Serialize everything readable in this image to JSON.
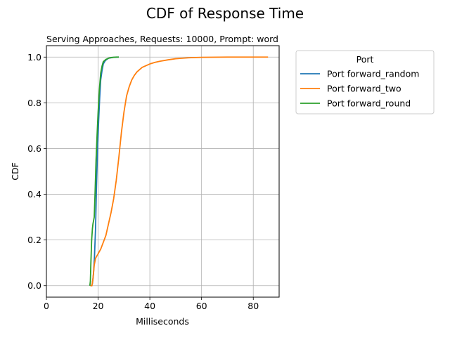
{
  "chart_data": {
    "type": "line",
    "title": "CDF of Response Time",
    "subtitle": "Serving Approaches, Requests: 10000, Prompt: word",
    "xlabel": "Milliseconds",
    "ylabel": "CDF",
    "xlim": [
      0,
      90
    ],
    "ylim": [
      -0.05,
      1.05
    ],
    "xticks": [
      0,
      20,
      40,
      60,
      80
    ],
    "yticks": [
      0.0,
      0.2,
      0.4,
      0.6,
      0.8,
      1.0
    ],
    "xtick_labels": [
      "0",
      "20",
      "40",
      "60",
      "80"
    ],
    "ytick_labels": [
      "0.0",
      "0.2",
      "0.4",
      "0.6",
      "0.8",
      "1.0"
    ],
    "grid": true,
    "legend": {
      "title": "Port",
      "placement": "outside-right"
    },
    "series": [
      {
        "name": "Port forward_random",
        "color": "#1f77b4",
        "x": [
          17.5,
          17.8,
          18.2,
          18.6,
          19.0,
          19.4,
          19.8,
          20.2,
          20.6,
          21.0,
          21.5,
          22.0,
          22.8,
          24.0,
          26.0,
          28.0
        ],
        "y": [
          0.0,
          0.01,
          0.05,
          0.13,
          0.25,
          0.45,
          0.6,
          0.72,
          0.82,
          0.9,
          0.94,
          0.97,
          0.985,
          0.995,
          0.999,
          1.0
        ]
      },
      {
        "name": "Port forward_two",
        "color": "#ff7f0e",
        "x": [
          17.0,
          17.6,
          18.0,
          18.5,
          19.0,
          20.0,
          21.0,
          22.0,
          23.0,
          24.0,
          25.0,
          26.0,
          27.0,
          28.0,
          29.0,
          30.0,
          31.0,
          32.0,
          33.0,
          34.0,
          35.0,
          36.0,
          37.0,
          38.0,
          39.0,
          40.0,
          42.0,
          44.0,
          47.0,
          50.0,
          55.0,
          60.0,
          70.0,
          80.0,
          85.7
        ],
        "y": [
          0.0,
          0.0,
          0.03,
          0.09,
          0.12,
          0.14,
          0.16,
          0.19,
          0.22,
          0.27,
          0.32,
          0.38,
          0.46,
          0.56,
          0.67,
          0.76,
          0.83,
          0.87,
          0.9,
          0.92,
          0.935,
          0.945,
          0.955,
          0.96,
          0.965,
          0.97,
          0.977,
          0.982,
          0.988,
          0.993,
          0.997,
          0.999,
          1.0,
          1.0,
          1.0
        ]
      },
      {
        "name": "Port forward_round",
        "color": "#2ca02c",
        "x": [
          16.8,
          17.0,
          17.2,
          17.5,
          17.8,
          18.0,
          18.5,
          18.8,
          19.2,
          19.6,
          20.0,
          20.5,
          21.0,
          21.5,
          22.0,
          23.0,
          24.0,
          25.0,
          27.0,
          28.0
        ],
        "y": [
          0.0,
          0.02,
          0.1,
          0.2,
          0.25,
          0.27,
          0.3,
          0.4,
          0.55,
          0.66,
          0.76,
          0.86,
          0.93,
          0.96,
          0.98,
          0.99,
          0.995,
          0.998,
          1.0,
          1.0
        ]
      }
    ]
  }
}
